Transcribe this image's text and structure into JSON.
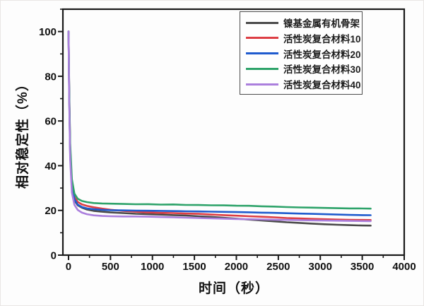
{
  "figure": {
    "background": "#fdfdfd",
    "axis_color": "#1a1a1a",
    "legend_border_color": "#4c4c4c"
  },
  "chart_data": {
    "type": "line",
    "title": "",
    "xlabel": "时间（秒）",
    "ylabel": "相对稳定性（%）",
    "xlim": [
      -67,
      4000
    ],
    "ylim": [
      0,
      110
    ],
    "x_ticks": [
      0,
      500,
      1000,
      1500,
      2000,
      2500,
      3000,
      3500,
      4000
    ],
    "y_ticks": [
      0,
      20,
      40,
      60,
      80,
      100
    ],
    "x_minor_step": 250,
    "y_minor_step": 10,
    "grid": false,
    "legend_position": "top-center-inside",
    "x": [
      0,
      8,
      20,
      40,
      70,
      110,
      160,
      220,
      300,
      400,
      500,
      650,
      800,
      950,
      1100,
      1250,
      1400,
      1550,
      1700,
      1850,
      2000,
      2150,
      2300,
      2450,
      2600,
      2750,
      2900,
      3050,
      3200,
      3350,
      3500,
      3600
    ],
    "series": [
      {
        "name": "镍基金属有机骨架",
        "color": "#4a4a4a",
        "values": [
          100,
          72,
          45,
          30,
          24.5,
          22.3,
          21.2,
          20.4,
          19.8,
          19.4,
          19.1,
          18.8,
          18.5,
          18.3,
          18.1,
          17.9,
          17.7,
          17.4,
          17.1,
          16.7,
          16.3,
          15.9,
          15.5,
          15.1,
          14.7,
          14.4,
          14.1,
          13.8,
          13.6,
          13.4,
          13.25,
          13.2
        ]
      },
      {
        "name": "活性炭复合材料10",
        "color": "#dd3e44",
        "values": [
          100,
          74,
          48,
          32,
          26,
          23.8,
          22.7,
          22.0,
          21.4,
          20.8,
          20.3,
          19.8,
          19.4,
          19.1,
          18.9,
          18.8,
          18.6,
          18.45,
          18.15,
          17.9,
          17.65,
          17.4,
          17.15,
          16.9,
          16.6,
          16.4,
          16.2,
          16.05,
          15.9,
          15.8,
          15.75,
          15.7
        ]
      },
      {
        "name": "活性炭复合材料20",
        "color": "#1f5bce",
        "values": [
          100,
          73,
          46,
          31,
          25,
          22.6,
          21.5,
          20.9,
          20.5,
          20.25,
          20.1,
          20.0,
          19.9,
          19.85,
          19.8,
          19.7,
          19.6,
          19.55,
          19.45,
          19.35,
          19.25,
          19.15,
          19.0,
          18.9,
          18.75,
          18.6,
          18.45,
          18.3,
          18.15,
          18.0,
          17.9,
          17.85
        ]
      },
      {
        "name": "活性炭复合材料30",
        "color": "#2ea36a",
        "values": [
          100,
          75,
          50,
          34,
          27.5,
          25.2,
          24.2,
          23.7,
          23.3,
          23.1,
          23.0,
          22.9,
          22.75,
          22.8,
          22.6,
          22.65,
          22.45,
          22.4,
          22.3,
          22.25,
          22.1,
          22.05,
          21.85,
          21.7,
          21.5,
          21.35,
          21.25,
          21.1,
          21.0,
          20.9,
          20.85,
          20.8
        ]
      },
      {
        "name": "活性炭复合材料40",
        "color": "#ab7fdd",
        "values": [
          100,
          70,
          43,
          28,
          22.5,
          20.2,
          19.0,
          18.3,
          17.8,
          17.5,
          17.4,
          17.3,
          17.3,
          17.2,
          17.05,
          16.9,
          16.75,
          16.6,
          16.45,
          16.3,
          16.15,
          16.05,
          15.95,
          15.85,
          15.75,
          15.65,
          15.55,
          15.45,
          15.4,
          15.3,
          15.25,
          15.2
        ]
      }
    ]
  }
}
